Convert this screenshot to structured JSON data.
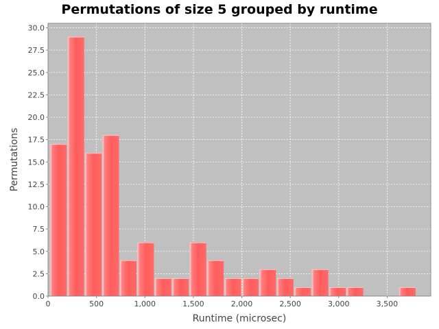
{
  "chart_data": {
    "type": "bar",
    "title": "Permutations of size 5 grouped by runtime",
    "xlabel": "Runtime (microsec)",
    "ylabel": "Permutations",
    "xlim": [
      0,
      3950
    ],
    "ylim": [
      0,
      30.5
    ],
    "xticks": [
      0,
      500,
      1000,
      1500,
      2000,
      2500,
      3000,
      3500
    ],
    "xtick_labels": [
      "0",
      "500",
      "1,000",
      "1,500",
      "2,000",
      "2,500",
      "3,000",
      "3,500"
    ],
    "yticks": [
      0,
      2.5,
      5,
      7.5,
      10,
      12.5,
      15,
      17.5,
      20,
      22.5,
      25,
      27.5,
      30
    ],
    "ytick_labels": [
      "0.0",
      "2.5",
      "5.0",
      "7.5",
      "10.0",
      "12.5",
      "15.0",
      "17.5",
      "20.0",
      "22.5",
      "25.0",
      "27.5",
      "30.0"
    ],
    "bin_width": 180,
    "bin_starts": [
      20,
      200,
      380,
      560,
      740,
      920,
      1100,
      1280,
      1460,
      1640,
      1820,
      2000,
      2180,
      2360,
      2540,
      2720,
      2900,
      3080,
      3620
    ],
    "values": [
      17,
      29,
      16,
      18,
      4,
      6,
      2,
      2,
      6,
      4,
      2,
      2,
      3,
      2,
      1,
      3,
      1,
      1,
      1
    ],
    "grid": true,
    "colors": {
      "bar": "#ff5555",
      "bar_highlight": "#ffc8c8",
      "plot_background": "#c0c0c0",
      "grid": "#ffffff",
      "axis": "#888888"
    }
  }
}
